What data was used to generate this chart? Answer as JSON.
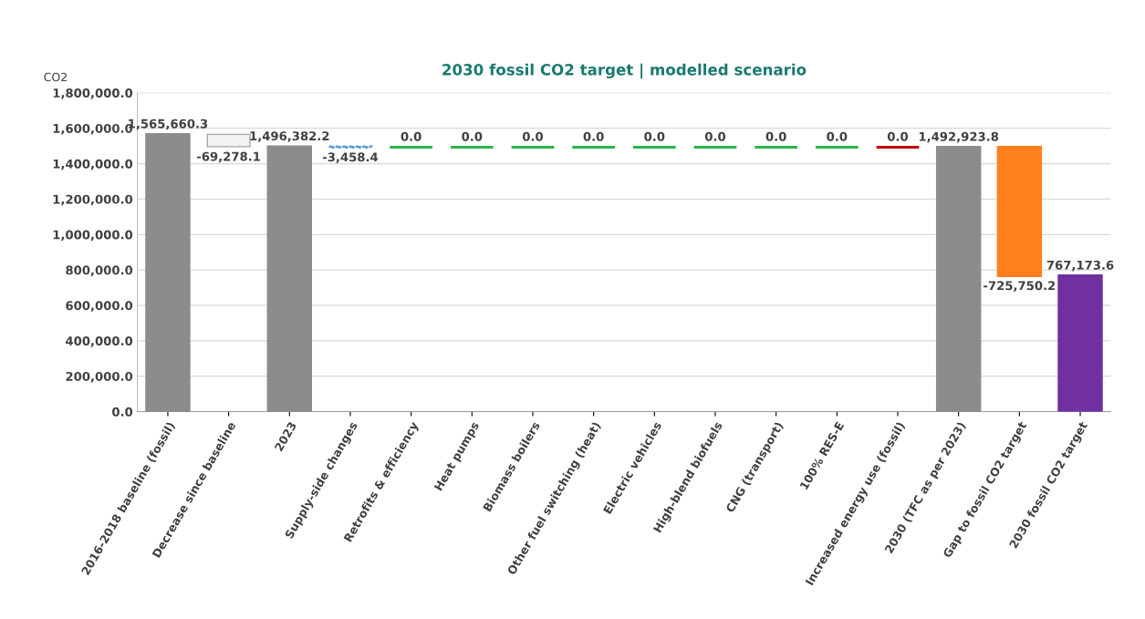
{
  "chart_data": {
    "type": "bar",
    "title": "2030 fossil CO2 target | modelled scenario",
    "ylabel": "CO2",
    "categories": [
      "2016-2018 baseline (fossil)",
      "Decrease since baseline",
      "2023",
      "Supply-side changes",
      "Retrofits & efficiency",
      "Heat pumps",
      "Biomass boilers",
      "Other fuel switching (heat)",
      "Electric vehicles",
      "High-blend biofuels",
      "CNG (transport)",
      "100% RES-E",
      "Increased energy use (fossil)",
      "2030 (TFC as per 2023)",
      "Gap to fossil CO2 target",
      "2030 fossil CO2 target"
    ],
    "values": [
      1565660.3,
      -69278.1,
      1496382.2,
      -3458.4,
      0.0,
      0.0,
      0.0,
      0.0,
      0.0,
      0.0,
      0.0,
      0.0,
      0.0,
      1492923.8,
      -725750.2,
      767173.6
    ],
    "base": [
      0,
      1565660.3,
      0,
      1496382.2,
      1492923.8,
      1492923.8,
      1492923.8,
      1492923.8,
      1492923.8,
      1492923.8,
      1492923.8,
      1492923.8,
      1492923.8,
      0,
      1492923.8,
      0
    ],
    "colors": [
      "#8c8c8c",
      "#f2f2f2",
      "#8c8c8c",
      "#5b9bd5",
      "#2db34a",
      "#2db34a",
      "#2db34a",
      "#2db34a",
      "#2db34a",
      "#2db34a",
      "#2db34a",
      "#2db34a",
      "#c00000",
      "#8c8c8c",
      "#ff7f1f",
      "#7030a0"
    ],
    "value_labels": [
      "1,565,660.3",
      "-69,278.1",
      "1,496,382.2",
      "-3,458.4",
      "0.0",
      "0.0",
      "0.0",
      "0.0",
      "0.0",
      "0.0",
      "0.0",
      "0.0",
      "0.0",
      "1,492,923.8",
      "-725,750.2",
      "767,173.6"
    ],
    "ylim": [
      0,
      1800000
    ],
    "yticks": [
      {
        "value": 0,
        "label": "0.0"
      },
      {
        "value": 200000,
        "label": "200,000.0"
      },
      {
        "value": 400000,
        "label": "400,000.0"
      },
      {
        "value": 600000,
        "label": "600,000.0"
      },
      {
        "value": 800000,
        "label": "800,000.0"
      },
      {
        "value": 1000000,
        "label": "1,000,000.0"
      },
      {
        "value": 1200000,
        "label": "1,200,000.0"
      },
      {
        "value": 1400000,
        "label": "1,400,000.0"
      },
      {
        "value": 1600000,
        "label": "1,600,000.0"
      },
      {
        "value": 1800000,
        "label": "1,800,000.0"
      }
    ],
    "grid": "y",
    "legend": false
  }
}
